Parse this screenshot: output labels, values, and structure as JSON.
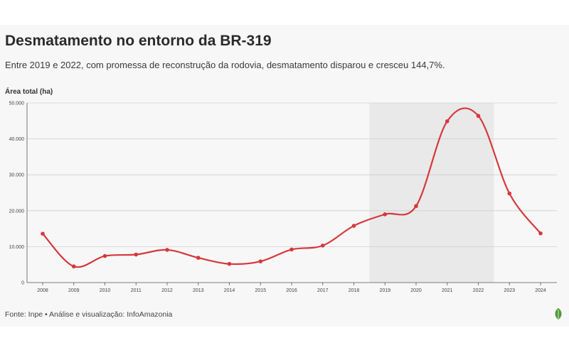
{
  "header": {
    "title": "Desmatamento no entorno da BR-319",
    "subtitle": "Entre 2019 e 2022, com promessa de reconstrução da rodovia, desmatamento disparou e cresceu 144,7%."
  },
  "footer": {
    "source": "Fonte: Inpe • Análise e visualização: InfoAmazonia",
    "logo_icon": "leaf-logo-icon"
  },
  "colors": {
    "line": "#d6383d",
    "highlight": "#e9e9e9",
    "grid": "#cfcfcf",
    "background": "#f7f7f7"
  },
  "chart_data": {
    "type": "line",
    "title": "Desmatamento no entorno da BR-319",
    "ylabel": "Área total (ha)",
    "xlabel": "",
    "x": [
      "2008",
      "2009",
      "2010",
      "2011",
      "2012",
      "2013",
      "2014",
      "2015",
      "2016",
      "2017",
      "2018",
      "2019",
      "2020",
      "2021",
      "2022",
      "2023",
      "2024"
    ],
    "series": [
      {
        "values": [
          13600,
          4500,
          7400,
          7800,
          9100,
          6900,
          5200,
          5900,
          9200,
          10300,
          15800,
          19000,
          21300,
          44900,
          46400,
          24800,
          13700
        ]
      }
    ],
    "ylim": [
      0,
      50000
    ],
    "yticks": [
      0,
      10000,
      20000,
      30000,
      40000,
      50000
    ],
    "ytick_labels": [
      "0",
      "10.000",
      "20.000",
      "30.000",
      "40.000",
      "50.000"
    ],
    "highlight_range": [
      "2019",
      "2022"
    ],
    "grid": true,
    "legend": "none"
  }
}
